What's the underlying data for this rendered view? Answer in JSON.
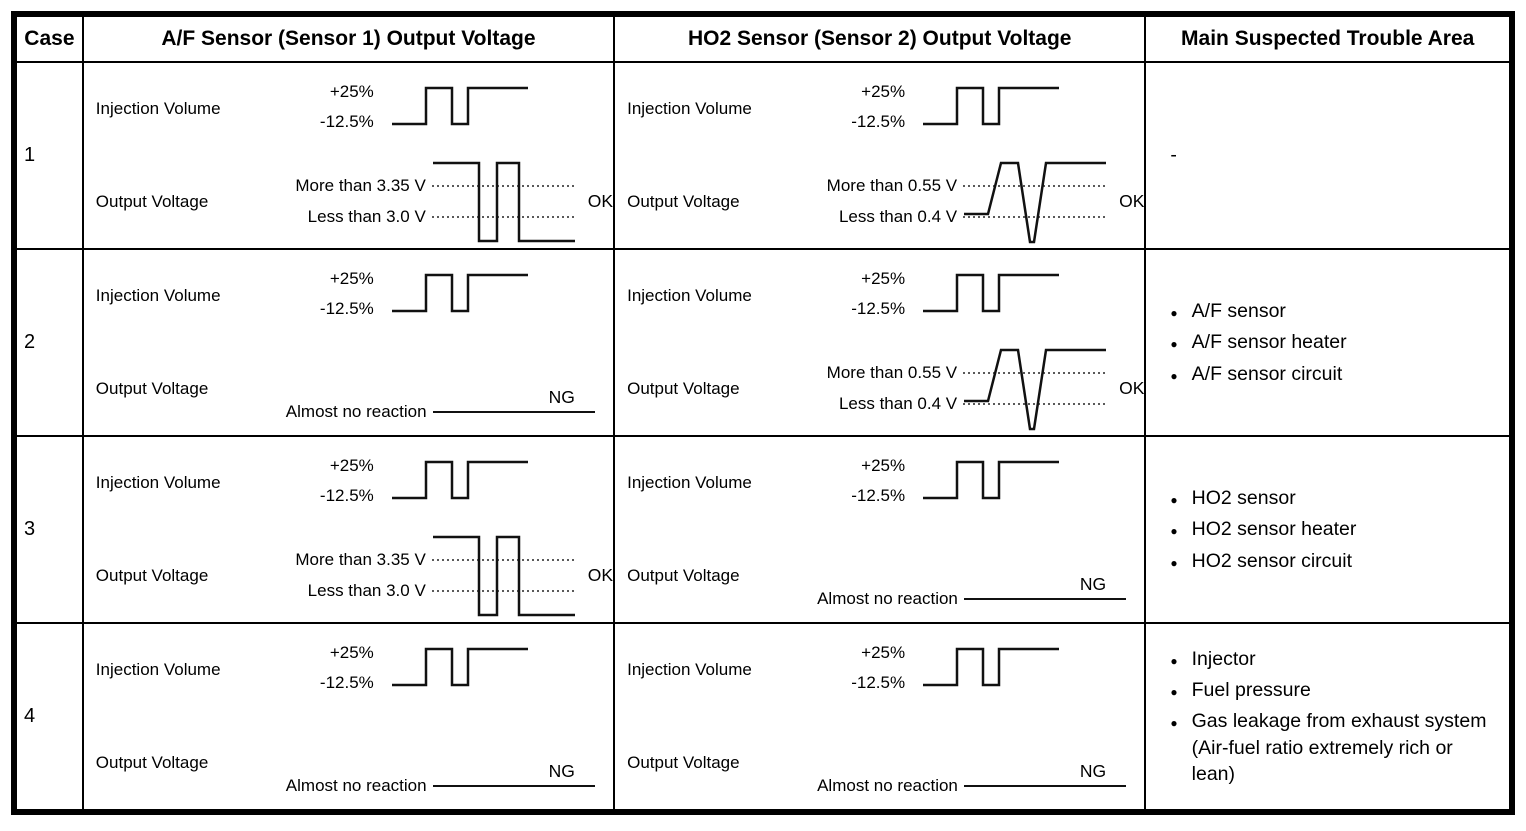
{
  "table": {
    "headers": [
      "Case",
      "A/F Sensor (Sensor 1) Output Voltage",
      "HO2 Sensor (Sensor 2) Output Voltage",
      "Main Suspected Trouble Area"
    ],
    "injection_label": "Injection Volume",
    "injection_plus": "+25%",
    "injection_minus": "-12.5%",
    "output_label": "Output Voltage",
    "no_reaction_label": "Almost no reaction",
    "rows": [
      {
        "case": "1",
        "af": {
          "status": "OK",
          "waveform": "square",
          "more": "More than 3.35 V",
          "less": "Less than 3.0 V"
        },
        "ho2": {
          "status": "OK",
          "waveform": "trapezoid",
          "more": "More than 0.55 V",
          "less": "Less than 0.4 V"
        },
        "trouble": {
          "bullets": false,
          "items": [
            "-"
          ]
        }
      },
      {
        "case": "2",
        "af": {
          "status": "NG",
          "waveform": "flat"
        },
        "ho2": {
          "status": "OK",
          "waveform": "trapezoid",
          "more": "More than 0.55 V",
          "less": "Less than 0.4 V"
        },
        "trouble": {
          "bullets": true,
          "items": [
            "A/F sensor",
            "A/F sensor heater",
            "A/F sensor circuit"
          ]
        }
      },
      {
        "case": "3",
        "af": {
          "status": "OK",
          "waveform": "square",
          "more": "More than 3.35 V",
          "less": "Less than 3.0 V"
        },
        "ho2": {
          "status": "NG",
          "waveform": "flat"
        },
        "trouble": {
          "bullets": true,
          "items": [
            "HO2 sensor",
            "HO2 sensor heater",
            "HO2 sensor circuit"
          ]
        }
      },
      {
        "case": "4",
        "af": {
          "status": "NG",
          "waveform": "flat"
        },
        "ho2": {
          "status": "NG",
          "waveform": "flat"
        },
        "trouble": {
          "bullets": true,
          "items": [
            "Injector",
            "Fuel pressure",
            "Gas leakage from exhaust system (Air-fuel ratio extremely rich or lean)"
          ]
        }
      }
    ]
  }
}
